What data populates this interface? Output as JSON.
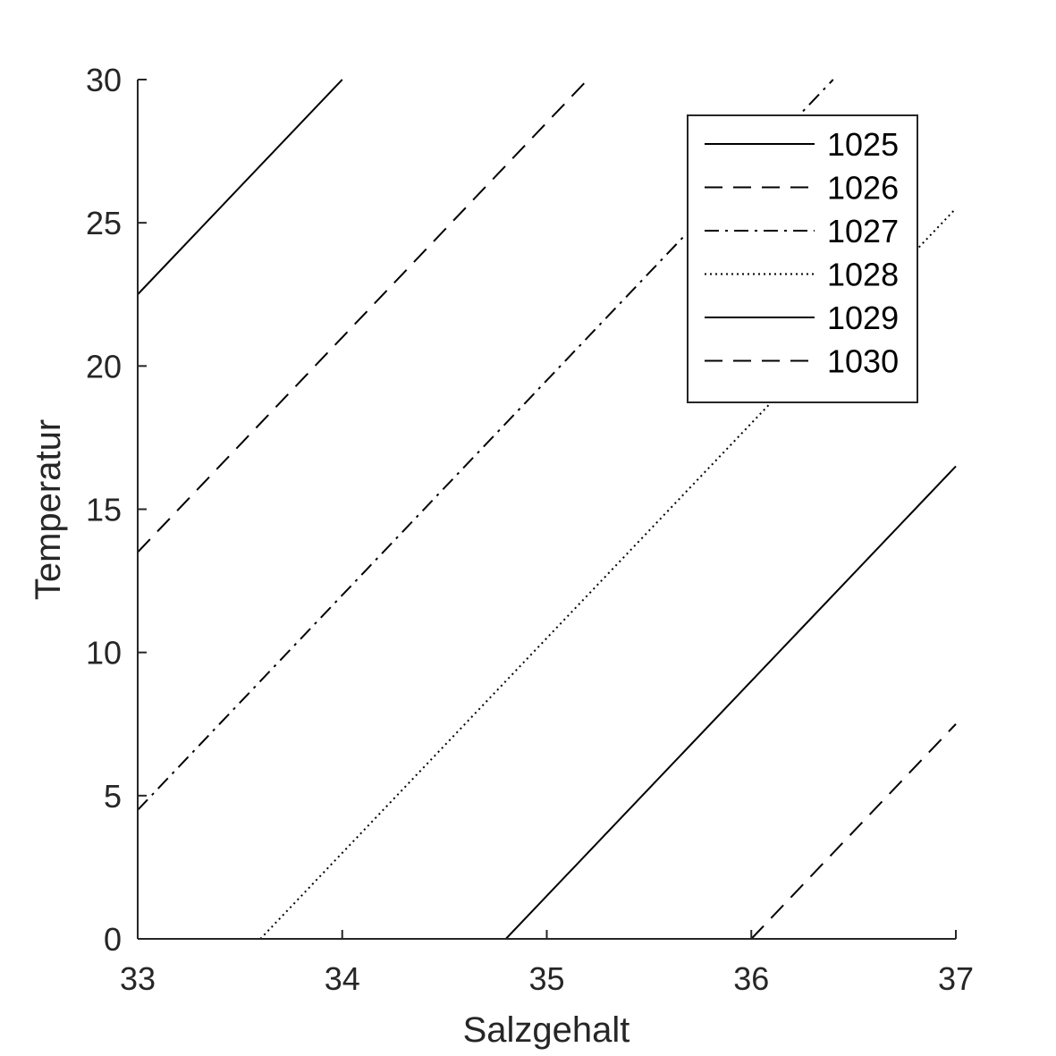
{
  "chart_data": {
    "type": "line",
    "title": "",
    "xlabel": "Salzgehalt",
    "ylabel": "Temperatur",
    "xlim": [
      33,
      37
    ],
    "ylim": [
      0,
      30
    ],
    "xticks": [
      33,
      34,
      35,
      36,
      37
    ],
    "yticks": [
      0,
      5,
      10,
      15,
      20,
      25,
      30
    ],
    "xtick_labels": [
      "33",
      "34",
      "35",
      "36",
      "37"
    ],
    "ytick_labels": [
      "0",
      "5",
      "10",
      "15",
      "20",
      "25",
      "30"
    ],
    "grid": false,
    "legend_position": "top-right",
    "axis_color": "#262626",
    "line_color": "#000000",
    "series": [
      {
        "name": "1025",
        "style": "solid",
        "x": [
          33.0,
          34.0
        ],
        "y": [
          22.5,
          30.0
        ]
      },
      {
        "name": "1026",
        "style": "dashed",
        "x": [
          33.0,
          35.2
        ],
        "y": [
          13.5,
          30.0
        ]
      },
      {
        "name": "1027",
        "style": "dashdot",
        "x": [
          33.0,
          36.4
        ],
        "y": [
          4.5,
          30.0
        ]
      },
      {
        "name": "1028",
        "style": "dotted",
        "x": [
          33.6,
          37.0
        ],
        "y": [
          0.0,
          25.5
        ]
      },
      {
        "name": "1029",
        "style": "solid",
        "x": [
          34.8,
          37.0
        ],
        "y": [
          0.0,
          16.5
        ]
      },
      {
        "name": "1030",
        "style": "dashed",
        "x": [
          36.0,
          37.0
        ],
        "y": [
          0.0,
          7.5
        ]
      }
    ]
  }
}
